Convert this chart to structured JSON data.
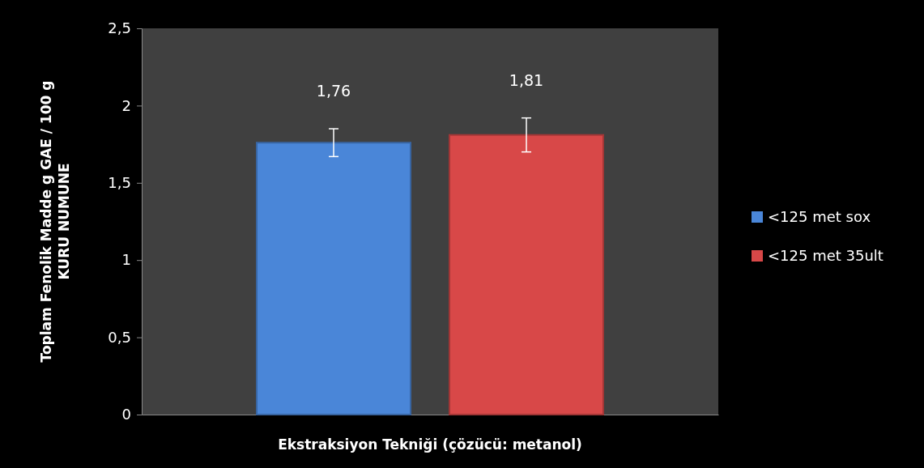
{
  "chart_data": {
    "type": "bar",
    "xlabel": "Ekstraksiyon Tekniği (çözücü: metanol)",
    "ylabel": "Toplam Fenolik Madde g GAE / 100 g\nKURU NUMUNE",
    "categories": [
      null
    ],
    "series": [
      {
        "name": "<125 met sox",
        "color": "#4a86d8",
        "values": [
          1.76
        ],
        "errors": [
          0.09
        ],
        "value_labels": [
          "1,76"
        ]
      },
      {
        "name": "<125 met 35ult",
        "color": "#d84848",
        "values": [
          1.81
        ],
        "errors": [
          0.11
        ],
        "value_labels": [
          "1,81"
        ]
      }
    ],
    "ylim": [
      0,
      2.5
    ],
    "yticks": [
      0,
      {
        "value": 0.5,
        "label": "0,5"
      },
      1,
      {
        "value": 1.5,
        "label": "1,5"
      },
      2,
      {
        "value": 2.5,
        "label": "2,5"
      }
    ],
    "legend": "right"
  }
}
